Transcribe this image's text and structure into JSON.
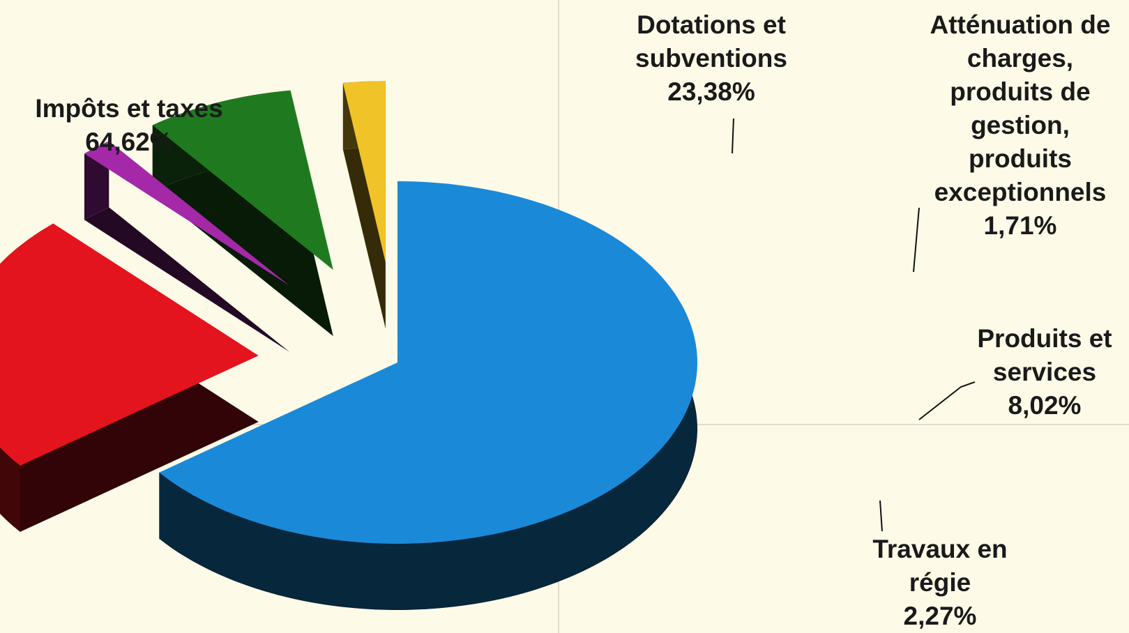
{
  "chart_data": {
    "type": "pie",
    "title": "",
    "slices": [
      {
        "label_lines": [
          "Impôts et taxes"
        ],
        "percent_text": "64,62%",
        "value": 64.62,
        "color": "#1a8ad8"
      },
      {
        "label_lines": [
          "Dotations et",
          "subventions"
        ],
        "percent_text": "23,38%",
        "value": 23.38,
        "color": "#e3141e"
      },
      {
        "label_lines": [
          "Atténuation de",
          "charges,",
          "produits de",
          "gestion,",
          "produits",
          "exceptionnels"
        ],
        "percent_text": "1,71%",
        "value": 1.71,
        "color": "#a428a8"
      },
      {
        "label_lines": [
          "Produits et",
          "services"
        ],
        "percent_text": "8,02%",
        "value": 8.02,
        "color": "#1f7a1f"
      },
      {
        "label_lines": [
          "Travaux en",
          "régie"
        ],
        "percent_text": "2,27%",
        "value": 2.27,
        "color": "#f0c328"
      }
    ],
    "legend": "none",
    "style": "3d-exploded"
  }
}
